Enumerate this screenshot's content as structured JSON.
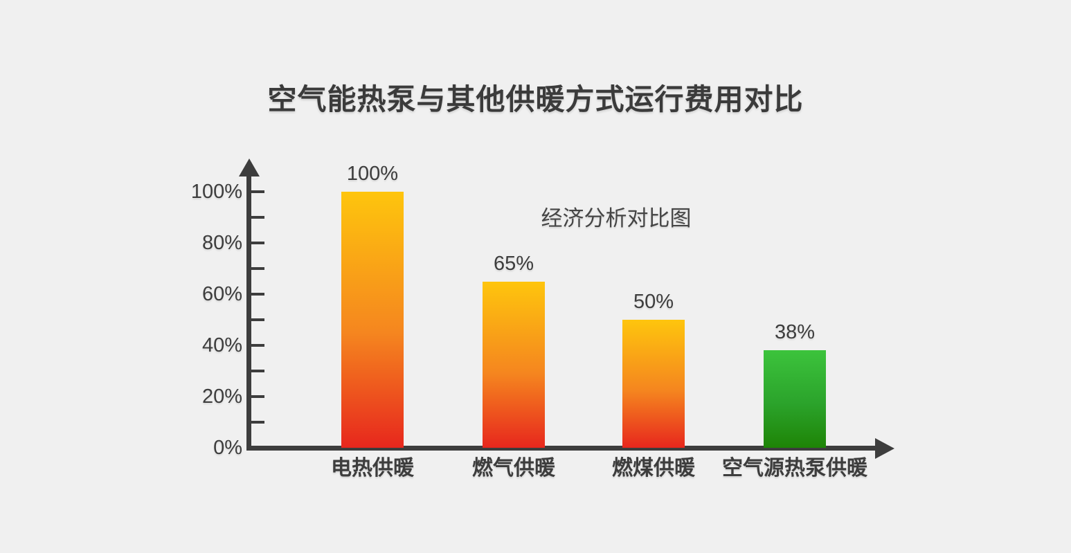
{
  "page": {
    "background_color": "#f0f0f0",
    "text_color": "#3d3d3d",
    "axis_color": "#3d3d3d"
  },
  "title": "空气能热泵与其他供暖方式运行费用对比",
  "annotation": "经济分析对比图",
  "chart_data": {
    "type": "bar",
    "title": "空气能热泵与其他供暖方式运行费用对比",
    "subtitle_annotation": "经济分析对比图",
    "categories": [
      "电热供暖",
      "燃气供暖",
      "燃煤供暖",
      "空气源热泵供暖"
    ],
    "values": [
      100,
      65,
      50,
      38
    ],
    "value_labels": [
      "100%",
      "65%",
      "50%",
      "38%"
    ],
    "xlabel": "",
    "ylabel": "",
    "ylim": [
      0,
      100
    ],
    "y_tick_labels": [
      "0%",
      "20%",
      "40%",
      "60%",
      "80%",
      "100%"
    ],
    "y_tick_values": [
      0,
      20,
      40,
      60,
      80,
      100
    ],
    "minor_tick_step_percent": 10,
    "grid": false,
    "legend": "none",
    "axis_arrows": true,
    "bar_gradients": [
      {
        "top": "#fec50d",
        "mid": "#f5861f",
        "bottom": "#e7271d"
      },
      {
        "top": "#fec50d",
        "mid": "#f5861f",
        "bottom": "#e7271d"
      },
      {
        "top": "#fec50d",
        "mid": "#f5861f",
        "bottom": "#e7271d"
      },
      {
        "top": "#3cc33c",
        "mid": "#2ba32b",
        "bottom": "#1e8406"
      }
    ]
  }
}
